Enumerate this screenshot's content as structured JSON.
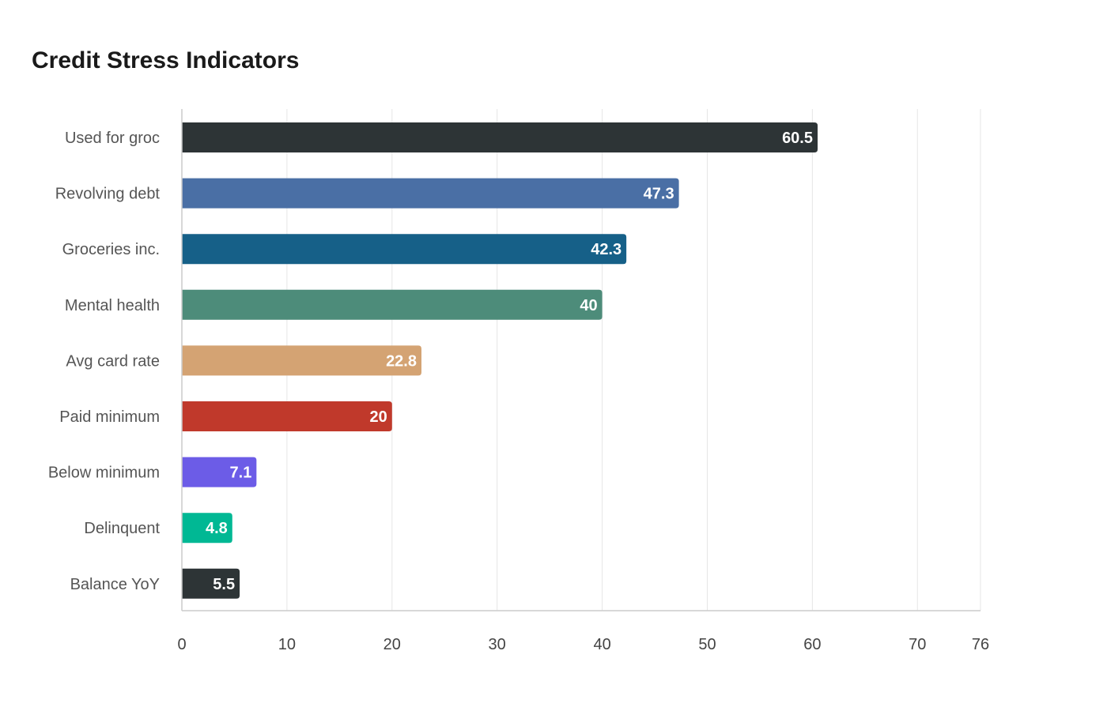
{
  "chart_data": {
    "type": "bar",
    "orientation": "horizontal",
    "title": "Credit Stress Indicators",
    "xlabel": "",
    "ylabel": "",
    "categories": [
      "Used for groc",
      "Revolving debt",
      "Groceries inc.",
      "Mental health",
      "Avg card rate",
      "Paid minimum",
      "Below minimum",
      "Delinquent",
      "Balance YoY"
    ],
    "values": [
      60.5,
      47.3,
      42.3,
      40,
      22.8,
      20,
      7.1,
      4.8,
      5.5
    ],
    "colors": [
      "#2d3436",
      "#4a6fa5",
      "#166088",
      "#4d8c7a",
      "#d4a373",
      "#c0392b",
      "#6c5ce7",
      "#00b894",
      "#2d3436"
    ],
    "x_ticks": [
      0,
      10,
      20,
      30,
      40,
      50,
      60,
      70,
      76
    ],
    "xlim": [
      0,
      76
    ],
    "grid": true,
    "legend": "none"
  }
}
